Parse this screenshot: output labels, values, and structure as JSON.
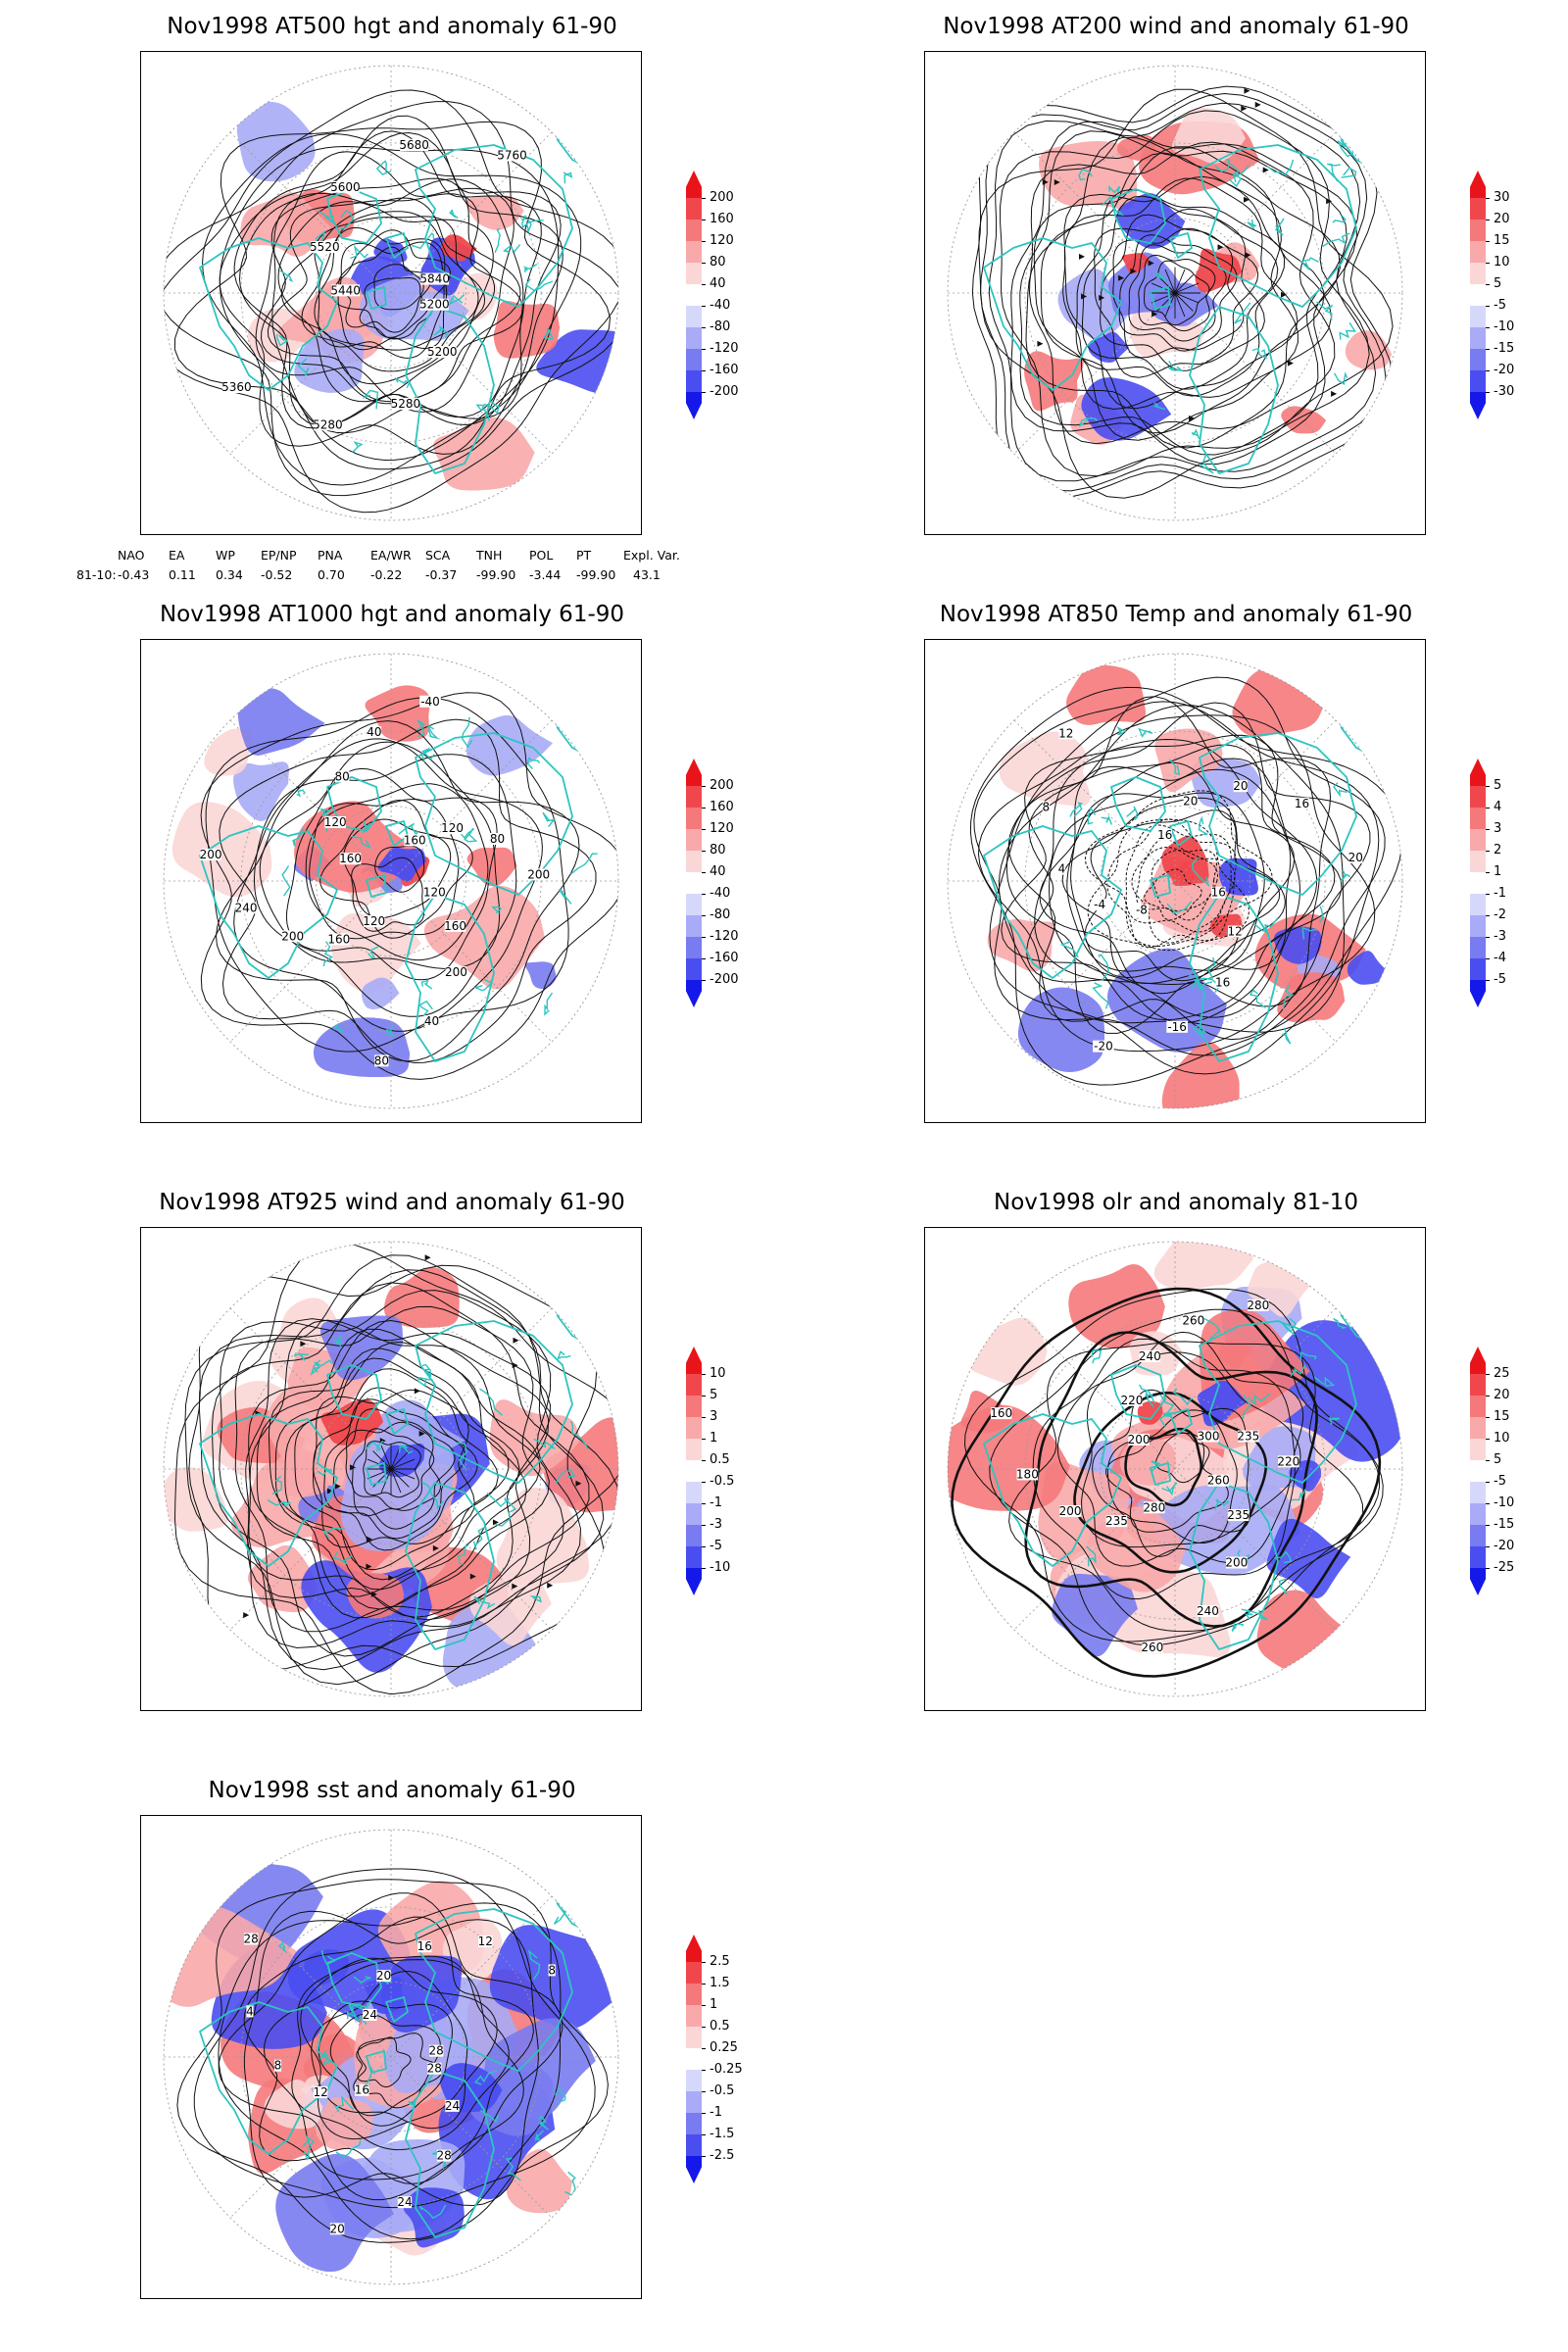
{
  "panels": [
    {
      "id": "p1",
      "title": "Nov1998 AT500 hgt and anomaly 61-90",
      "colorbar": [
        "200",
        "160",
        "120",
        "80",
        "40",
        "-40",
        "-80",
        "-120",
        "-160",
        "-200"
      ],
      "contour_labels": [
        "5200",
        "5200",
        "5280",
        "5280",
        "5360",
        "5440",
        "5520",
        "5600",
        "5680",
        "5760",
        "5840"
      ]
    },
    {
      "id": "p2",
      "title": "Nov1998 AT200 wind and anomaly 61-90",
      "colorbar": [
        "30",
        "20",
        "15",
        "10",
        "5",
        "-5",
        "-10",
        "-15",
        "-20",
        "-30"
      ],
      "contour_labels": []
    },
    {
      "id": "p3",
      "title": "Nov1998 AT1000 hgt and anomaly 61-90",
      "colorbar": [
        "200",
        "160",
        "120",
        "80",
        "40",
        "-40",
        "-80",
        "-120",
        "-160",
        "-200"
      ],
      "contour_labels": [
        "120",
        "160",
        "200",
        "40",
        "80",
        "120",
        "160",
        "200",
        "240",
        "200",
        "160",
        "120",
        "80",
        "40",
        "-40",
        "160",
        "120",
        "80",
        "200"
      ]
    },
    {
      "id": "p4",
      "title": "Nov1998 AT850 Temp and anomaly 61-90",
      "colorbar": [
        "5",
        "4",
        "3",
        "2",
        "1",
        "-1",
        "-2",
        "-3",
        "-4",
        "-5"
      ],
      "contour_labels": [
        "16",
        "12",
        "16",
        "-16",
        "-20",
        "-8",
        "-4",
        "4",
        "8",
        "12",
        "16",
        "20",
        "20",
        "16",
        "20"
      ]
    },
    {
      "id": "p5",
      "title": "Nov1998 AT925 wind and anomaly 61-90",
      "colorbar": [
        "10",
        "5",
        "3",
        "1",
        "0.5",
        "-0.5",
        "-1",
        "-3",
        "-5",
        "-10"
      ],
      "contour_labels": []
    },
    {
      "id": "p6",
      "title": "Nov1998 olr and anomaly 81-10",
      "colorbar": [
        "25",
        "20",
        "15",
        "10",
        "5",
        "-5",
        "-10",
        "-15",
        "-20",
        "-25"
      ],
      "contour_labels": [
        "260",
        "235",
        "200",
        "240",
        "260",
        "280",
        "235",
        "200",
        "180",
        "160",
        "200",
        "220",
        "240",
        "260",
        "280",
        "300",
        "235",
        "220"
      ]
    },
    {
      "id": "p7",
      "title": "Nov1998 sst and anomaly 61-90",
      "colorbar": [
        "2.5",
        "1.5",
        "1",
        "0.5",
        "0.25",
        "-0.25",
        "-0.5",
        "-1",
        "-1.5",
        "-2.5"
      ],
      "contour_labels": [
        "28",
        "24",
        "28",
        "24",
        "20",
        "16",
        "12",
        "8",
        "4",
        "28",
        "24",
        "20",
        "16",
        "12",
        "8",
        "28"
      ]
    }
  ],
  "teleconnection": {
    "headers": [
      "NAO",
      "EA",
      "WP",
      "EP/NP",
      "PNA",
      "EA/WR",
      "SCA",
      "TNH",
      "POL",
      "PT",
      "Expl. Var."
    ],
    "row_label": "81-10:",
    "values": [
      "-0.43",
      "0.11",
      "0.34",
      "-0.52",
      "0.70",
      "-0.22",
      "-0.37",
      "-99.90",
      "-3.44",
      "-99.90",
      "43.1"
    ]
  },
  "colors": {
    "coast": "#2cc5c0",
    "contour": "#111111",
    "grid": "#9a9a9a",
    "scale": [
      "#e8141a",
      "#f0474c",
      "#f5797b",
      "#f8a9aa",
      "#fbd6d6",
      "#ffffff",
      "#d6d8fb",
      "#a9abf6",
      "#797bf0",
      "#4a4ef0",
      "#1418e8"
    ]
  }
}
